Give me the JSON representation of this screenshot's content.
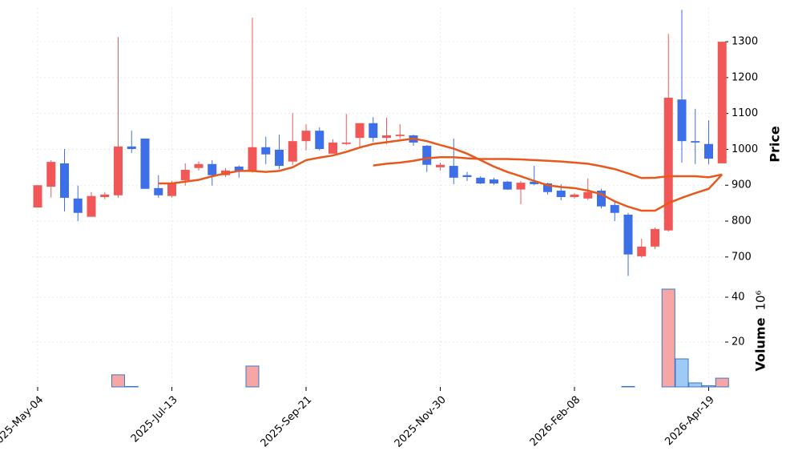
{
  "chart_data": {
    "type": "candlestick",
    "x": [
      "2025-May-04",
      null,
      null,
      null,
      null,
      null,
      null,
      null,
      null,
      null,
      "2025-Jul-13",
      null,
      null,
      null,
      null,
      null,
      null,
      null,
      null,
      null,
      "2025-Sep-21",
      null,
      null,
      null,
      null,
      null,
      null,
      null,
      null,
      null,
      "2025-Nov-30",
      null,
      null,
      null,
      null,
      null,
      null,
      null,
      null,
      null,
      "2026-Feb-08",
      null,
      null,
      null,
      null,
      null,
      null,
      null,
      null,
      null,
      "2026-Apr-19",
      null
    ],
    "open": [
      838,
      896,
      961,
      863,
      812,
      867,
      872,
      1008,
      1030,
      892,
      870,
      914,
      948,
      959,
      928,
      952,
      939,
      1006,
      999,
      966,
      1023,
      1052,
      988,
      1015,
      1032,
      1073,
      1032,
      1037,
      1039,
      1010,
      950,
      954,
      928,
      921,
      916,
      910,
      888,
      910,
      905,
      885,
      867,
      863,
      885,
      845,
      818,
      702,
      729,
      774,
      1139,
      1023,
      1015,
      961
    ],
    "high": [
      900,
      970,
      1001,
      899,
      881,
      881,
      1313,
      1052,
      1030,
      928,
      912,
      961,
      966,
      970,
      948,
      955,
      1367,
      1035,
      1041,
      1101,
      1070,
      1061,
      1028,
      1099,
      1073,
      1090,
      1088,
      1070,
      1041,
      1012,
      963,
      1030,
      937,
      925,
      921,
      912,
      912,
      954,
      907,
      903,
      878,
      919,
      890,
      854,
      823,
      751,
      782,
      1322,
      1389,
      1113,
      1081,
      1300
    ],
    "low": [
      838,
      866,
      827,
      800,
      812,
      861,
      865,
      990,
      890,
      865,
      866,
      899,
      941,
      899,
      923,
      921,
      935,
      959,
      945,
      957,
      997,
      997,
      988,
      1012,
      1003,
      1021,
      1015,
      1030,
      1010,
      937,
      941,
      903,
      912,
      903,
      901,
      887,
      847,
      900,
      874,
      858,
      863,
      859,
      836,
      800,
      647,
      698,
      722,
      771,
      963,
      959,
      959,
      961
    ],
    "close": [
      900,
      965,
      865,
      823,
      870,
      874,
      1008,
      1001,
      890,
      872,
      907,
      943,
      959,
      928,
      941,
      939,
      1006,
      986,
      954,
      1023,
      1052,
      1001,
      1019,
      1019,
      1073,
      1032,
      1039,
      1041,
      1019,
      957,
      957,
      921,
      923,
      905,
      905,
      888,
      907,
      903,
      881,
      867,
      874,
      881,
      841,
      823,
      707,
      729,
      778,
      1144,
      1023,
      1019,
      974,
      1300
    ],
    "volume": [
      0,
      0,
      0,
      0,
      0,
      0,
      5.4,
      0.2,
      0,
      0,
      0,
      0,
      0,
      0,
      0,
      0,
      9.3,
      0,
      0,
      0,
      0,
      0,
      0,
      0,
      0,
      0,
      0,
      0,
      0,
      0,
      0,
      0,
      0,
      0,
      0,
      0,
      0,
      0,
      0,
      0,
      0,
      0,
      0,
      0,
      0.2,
      0,
      0,
      43.6,
      12.5,
      1.8,
      0.5,
      3.9
    ],
    "up_color": "#f25757",
    "down_color": "#3c6fe8",
    "volume_up_color": "#f7a6a6",
    "volume_down_color": "#9ecbf5",
    "volume_edge_color": "#3d77c6",
    "moving_averages": [
      {
        "color": "#e8581c",
        "values": [
          null,
          null,
          null,
          null,
          null,
          null,
          null,
          null,
          null,
          905,
          905,
          910,
          915,
          925,
          933,
          940,
          940,
          937,
          940,
          950,
          970,
          977,
          983,
          993,
          1005,
          1015,
          1020,
          1025,
          1030,
          1023,
          1012,
          1002,
          988,
          970,
          952,
          937,
          925,
          912,
          900,
          895,
          892,
          885,
          875,
          855,
          840,
          829,
          829,
          850,
          865,
          878,
          890,
          930
        ]
      },
      {
        "color": "#e8581c",
        "values": [
          null,
          null,
          null,
          null,
          null,
          null,
          null,
          null,
          null,
          null,
          null,
          null,
          null,
          null,
          null,
          null,
          null,
          null,
          null,
          null,
          null,
          null,
          null,
          null,
          null,
          955,
          960,
          963,
          968,
          975,
          978,
          978,
          975,
          973,
          973,
          973,
          972,
          970,
          968,
          966,
          963,
          960,
          953,
          945,
          933,
          920,
          921,
          925,
          925,
          925,
          922,
          930
        ]
      }
    ],
    "ylabel": "Price",
    "ylim": [
      646,
      1394
    ],
    "yticks": [
      700,
      800,
      900,
      1000,
      1100,
      1200,
      1300
    ],
    "volume_label": "Volume",
    "volume_offset": "10⁶",
    "volume_ylim": [
      0,
      49.3
    ],
    "volume_yticks": [
      20,
      40
    ],
    "grid": true
  }
}
